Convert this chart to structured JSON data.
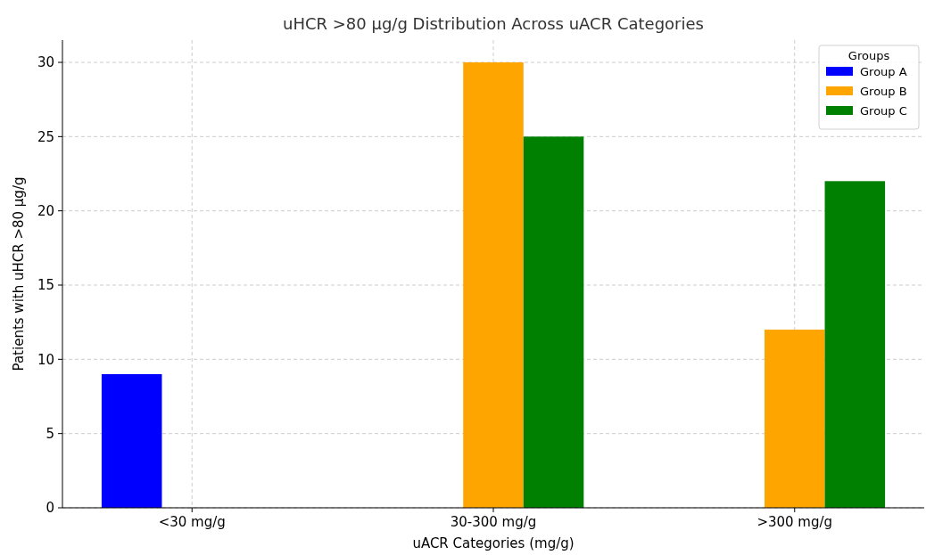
{
  "chart_data": {
    "type": "bar",
    "title": "uHCR >80 µg/g Distribution Across uACR Categories",
    "xlabel": "uACR Categories (mg/g)",
    "ylabel": "Patients with uHCR >80 µg/g",
    "categories": [
      "<30 mg/g",
      "30-300 mg/g",
      ">300 mg/g"
    ],
    "series": [
      {
        "name": "Group A",
        "color": "#0000ff",
        "values": [
          9,
          0,
          0
        ]
      },
      {
        "name": "Group B",
        "color": "#ffa500",
        "values": [
          0,
          30,
          12
        ]
      },
      {
        "name": "Group C",
        "color": "#008000",
        "values": [
          0,
          25,
          22
        ]
      }
    ],
    "ylim": [
      0,
      31.5
    ],
    "yticks": [
      0,
      5,
      10,
      15,
      20,
      25,
      30
    ],
    "grid": true,
    "legend": "top right",
    "legend_title": "Groups"
  }
}
